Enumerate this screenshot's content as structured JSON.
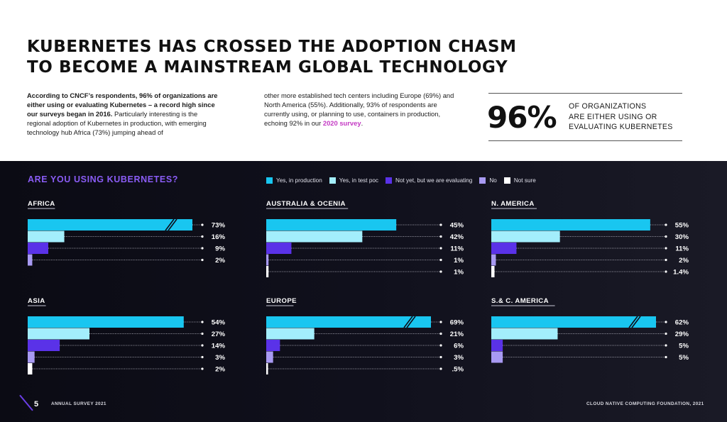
{
  "headline": {
    "line1": "KUBERNETES HAS CROSSED THE ADOPTION CHASM",
    "line2": "TO BECOME A MAINSTREAM GLOBAL TECHNOLOGY"
  },
  "intro": {
    "left_bold": "According to CNCF’s respondents, 96% of organizations are either using or evaluating Kubernetes – a record high since our surveys began in 2016.",
    "left_rest": " Particularly interesting is the regional adoption of Kubernetes in production, with emerging technology hub Africa (73%) jumping ahead of",
    "right_text": "other more established tech centers including Europe (69%) and North America (55%). Additionally, 93% of respondents are currently using, or planning to use, containers in production, echoing 92% in our ",
    "right_link": "2020 survey",
    "right_end": "."
  },
  "stat": {
    "number": "96%",
    "line1": "OF ORGANIZATIONS",
    "line2": "ARE EITHER USING OR",
    "line3": "EVALUATING KUBERNETES"
  },
  "footer": {
    "page": "5",
    "left": "ANNUAL SURVEY 2021",
    "right": "CLOUD NATIVE COMPUTING FOUNDATION, 2021"
  },
  "chart_data": {
    "type": "bar",
    "orientation": "horizontal",
    "title": "ARE YOU USING KUBERNETES?",
    "xlim": [
      0,
      100
    ],
    "categories": [
      "Yes, in production",
      "Yes, in test poc",
      "Not yet, but we are evaluating",
      "No",
      "Not sure"
    ],
    "colors": [
      "#19c6f0",
      "#a3eefc",
      "#5a32e8",
      "#a89af2",
      "#ffffff"
    ],
    "panels": [
      {
        "region": "AFRICA",
        "values": [
          73,
          16,
          9,
          2
        ],
        "labels": [
          "73%",
          "16%",
          "9%",
          "2%"
        ],
        "break_on_first": true
      },
      {
        "region": "AUSTRALIA & OCENIA",
        "values": [
          45,
          42,
          11,
          1,
          1
        ],
        "labels": [
          "45%",
          "42%",
          "11%",
          "1%",
          "1%"
        ],
        "break_on_first": false
      },
      {
        "region": "N. AMERICA",
        "values": [
          55,
          30,
          11,
          2,
          1.4
        ],
        "labels": [
          "55%",
          "30%",
          "11%",
          "2%",
          "1.4%"
        ],
        "break_on_first": false
      },
      {
        "region": "ASIA",
        "values": [
          54,
          27,
          14,
          3,
          2
        ],
        "labels": [
          "54%",
          "27%",
          "14%",
          "3%",
          "2%"
        ],
        "break_on_first": false
      },
      {
        "region": "EUROPE",
        "values": [
          69,
          21,
          6,
          3,
          0.5
        ],
        "labels": [
          "69%",
          "21%",
          "6%",
          "3%",
          ".5%"
        ],
        "break_on_first": true
      },
      {
        "region": "S.& C. AMERICA",
        "values": [
          62,
          29,
          5,
          5
        ],
        "labels": [
          "62%",
          "29%",
          "5%",
          "5%"
        ],
        "break_on_first": true
      }
    ]
  }
}
